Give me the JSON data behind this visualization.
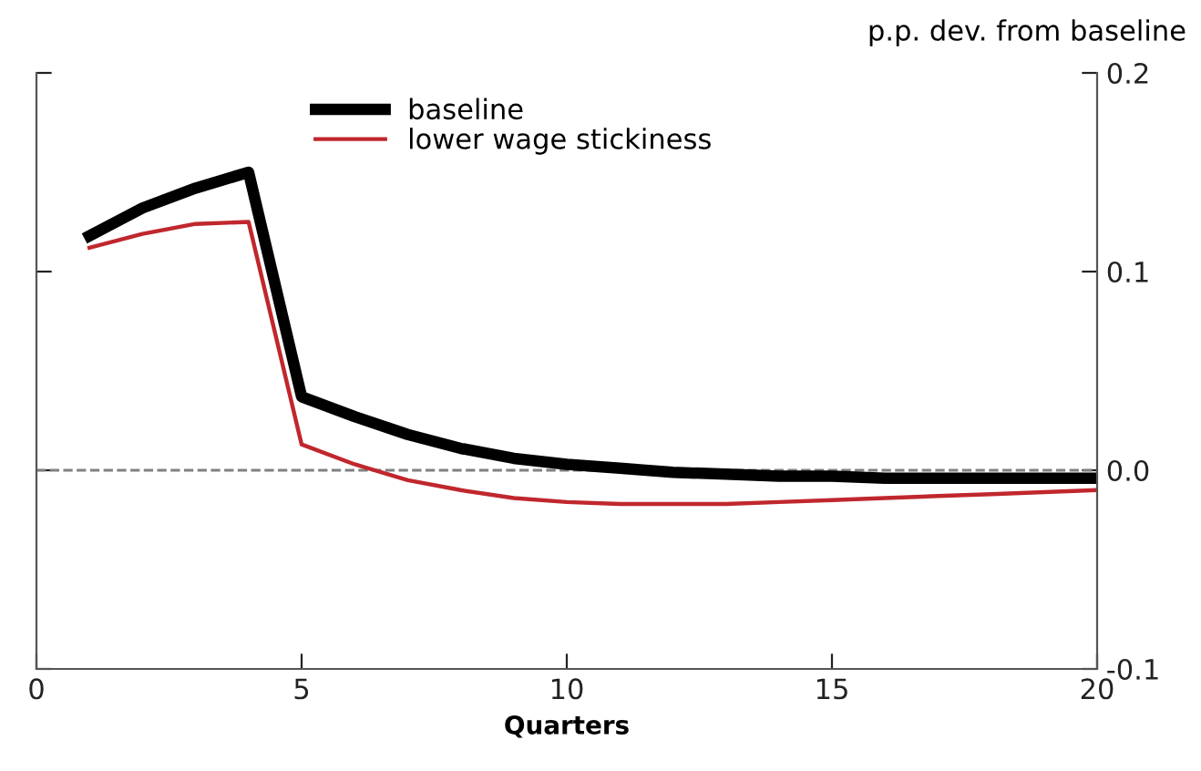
{
  "chart_data": {
    "type": "line",
    "ylabel": "p.p. dev. from baseline",
    "xlabel": "Quarters",
    "x": [
      1,
      2,
      3,
      4,
      5,
      6,
      7,
      8,
      9,
      10,
      11,
      12,
      13,
      14,
      15,
      16,
      17,
      18,
      19,
      20
    ],
    "series": [
      {
        "name": "baseline",
        "color": "#000000",
        "values": [
          0.118,
          0.132,
          0.142,
          0.15,
          0.037,
          0.027,
          0.018,
          0.011,
          0.006,
          0.003,
          0.001,
          -0.001,
          -0.002,
          -0.003,
          -0.003,
          -0.004,
          -0.004,
          -0.004,
          -0.004,
          -0.004
        ]
      },
      {
        "name": "lower wage stickiness",
        "color": "#c0272d",
        "values": [
          0.112,
          0.119,
          0.124,
          0.125,
          0.013,
          0.003,
          -0.005,
          -0.01,
          -0.014,
          -0.016,
          -0.017,
          -0.017,
          -0.017,
          -0.016,
          -0.015,
          -0.014,
          -0.013,
          -0.012,
          -0.011,
          -0.01
        ]
      }
    ],
    "xlim": [
      0,
      20
    ],
    "xticks": [
      0,
      5,
      10,
      15,
      20
    ],
    "ylim": [
      -0.1,
      0.2
    ],
    "yticks": [
      -0.1,
      {
        "value": 0,
        "label": "0.0"
      },
      0.1,
      0.2
    ],
    "ref_lines": [
      {
        "axis": "y",
        "value": 0,
        "color": "#808080",
        "line_style": "dashed"
      }
    ],
    "legend": "top",
    "grid": false,
    "marker": "none",
    "line_style": "solid"
  }
}
